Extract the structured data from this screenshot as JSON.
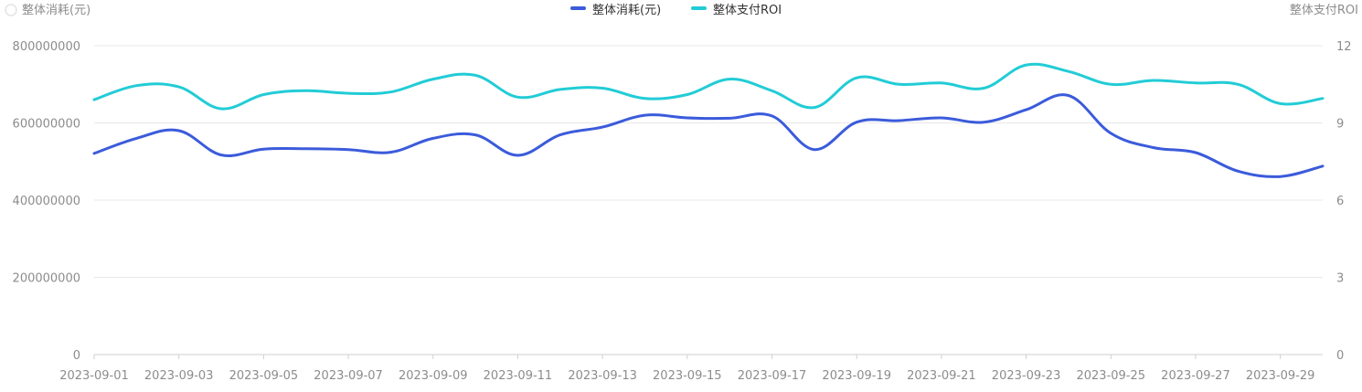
{
  "chart_data": {
    "type": "line",
    "left_axis_title": "整体消耗(元)",
    "right_axis_title": "整体支付ROI",
    "legend": [
      {
        "label": "整体消耗(元)",
        "color": "#3B5BDB"
      },
      {
        "label": "整体支付ROI",
        "color": "#22CCD6"
      }
    ],
    "x": [
      "2023-09-01",
      "2023-09-02",
      "2023-09-03",
      "2023-09-04",
      "2023-09-05",
      "2023-09-06",
      "2023-09-07",
      "2023-09-08",
      "2023-09-09",
      "2023-09-10",
      "2023-09-11",
      "2023-09-12",
      "2023-09-13",
      "2023-09-14",
      "2023-09-15",
      "2023-09-16",
      "2023-09-17",
      "2023-09-18",
      "2023-09-19",
      "2023-09-20",
      "2023-09-21",
      "2023-09-22",
      "2023-09-23",
      "2023-09-24",
      "2023-09-25",
      "2023-09-26",
      "2023-09-27",
      "2023-09-28",
      "2023-09-29",
      "2023-09-30"
    ],
    "x_tick_labels": [
      "2023-09-01",
      "2023-09-03",
      "2023-09-05",
      "2023-09-07",
      "2023-09-09",
      "2023-09-11",
      "2023-09-13",
      "2023-09-15",
      "2023-09-17",
      "2023-09-19",
      "2023-09-21",
      "2023-09-23",
      "2023-09-25",
      "2023-09-27",
      "2023-09-29"
    ],
    "y_left": {
      "min": 0,
      "max": 800000000,
      "ticks": [
        "0",
        "200000000",
        "400000000",
        "600000000",
        "800000000"
      ]
    },
    "y_right": {
      "min": 0,
      "max": 12,
      "ticks": [
        "0",
        "3",
        "6",
        "9",
        "12"
      ]
    },
    "series": [
      {
        "name": "整体消耗(元)",
        "axis": "left",
        "color": "#3B5BDB",
        "values": [
          521000000,
          560000000,
          580000000,
          517000000,
          532000000,
          533000000,
          531000000,
          524000000,
          560000000,
          569000000,
          516000000,
          569000000,
          589000000,
          620000000,
          613000000,
          612000000,
          618000000,
          531000000,
          602000000,
          606000000,
          613000000,
          602000000,
          634000000,
          671000000,
          573000000,
          536000000,
          523000000,
          475000000,
          461000000,
          488000000
        ]
      },
      {
        "name": "整体支付ROI",
        "axis": "right",
        "color": "#22CCD6",
        "values": [
          9.9,
          10.45,
          10.4,
          9.55,
          10.1,
          10.25,
          10.15,
          10.2,
          10.7,
          10.85,
          10.0,
          10.3,
          10.35,
          9.95,
          10.1,
          10.7,
          10.25,
          9.6,
          10.75,
          10.5,
          10.55,
          10.35,
          11.25,
          11.0,
          10.5,
          10.65,
          10.55,
          10.5,
          9.75,
          9.95
        ]
      }
    ],
    "grid": true,
    "legend_position": "top-center"
  }
}
